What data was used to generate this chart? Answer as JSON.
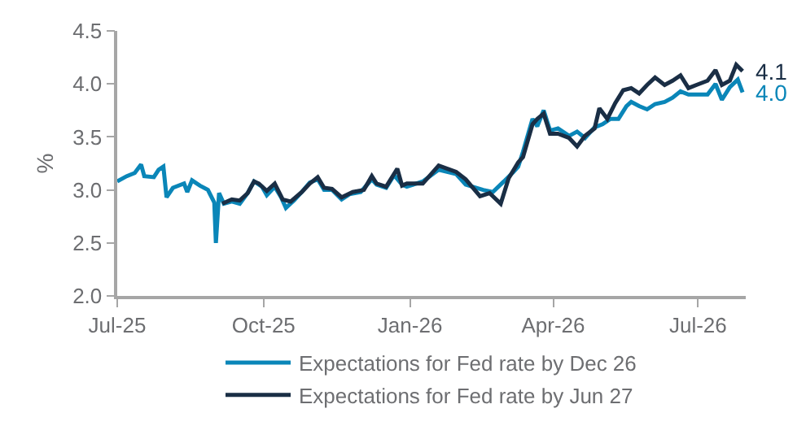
{
  "chart_data": {
    "type": "line",
    "ylabel": "%",
    "xlim": [
      "2025-07-01",
      "2026-07-31"
    ],
    "xticks": [
      {
        "value": "2025-07-01",
        "label": "Jul-25"
      },
      {
        "value": "2025-10-01",
        "label": "Oct-25"
      },
      {
        "value": "2026-01-01",
        "label": "Jan-26"
      },
      {
        "value": "2026-04-01",
        "label": "Apr-26"
      },
      {
        "value": "2026-07-01",
        "label": "Jul-26"
      }
    ],
    "ylim": [
      2,
      4.5
    ],
    "yticks": [
      {
        "value": 2,
        "label": "2.0"
      },
      {
        "value": 2.5,
        "label": "2.5"
      },
      {
        "value": 3,
        "label": "3.0"
      },
      {
        "value": 3.5,
        "label": "3.5"
      },
      {
        "value": 4,
        "label": "4.0"
      },
      {
        "value": 4.5,
        "label": "4.5"
      }
    ],
    "legend": "bottom",
    "line_style": "solid",
    "marker": "none",
    "series": [
      {
        "name": "Expectations for Fed rate by Dec 26",
        "color": "#0a86b8",
        "x": [
          "2025-07-01",
          "2025-07-07",
          "2025-07-12",
          "2025-07-16",
          "2025-07-18",
          "2025-07-24",
          "2025-07-27",
          "2025-07-30",
          "2025-08-01",
          "2025-08-05",
          "2025-08-12",
          "2025-08-14",
          "2025-08-17",
          "2025-08-22",
          "2025-08-27",
          "2025-08-31",
          "2025-09-01",
          "2025-09-03",
          "2025-09-06",
          "2025-09-11",
          "2025-09-16",
          "2025-09-21",
          "2025-09-25",
          "2025-09-30",
          "2025-10-03",
          "2025-10-08",
          "2025-10-12",
          "2025-10-15",
          "2025-10-20",
          "2025-10-25",
          "2025-10-30",
          "2025-11-04",
          "2025-11-08",
          "2025-11-13",
          "2025-11-19",
          "2025-11-24",
          "2025-12-01",
          "2025-12-08",
          "2025-12-11",
          "2025-12-17",
          "2025-12-22",
          "2025-12-27",
          "2025-12-30",
          "2026-01-09",
          "2026-01-19",
          "2026-01-30",
          "2026-02-05",
          "2026-02-16",
          "2026-02-22",
          "2026-03-01",
          "2026-03-07",
          "2026-03-10",
          "2026-03-13",
          "2026-03-19",
          "2026-03-22",
          "2026-03-26",
          "2026-03-30",
          "2026-04-04",
          "2026-04-11",
          "2026-04-16",
          "2026-04-21",
          "2026-04-27",
          "2026-05-02",
          "2026-05-07",
          "2026-05-12",
          "2026-05-17",
          "2026-05-20",
          "2026-05-25",
          "2026-05-30",
          "2026-06-04",
          "2026-06-10",
          "2026-06-15",
          "2026-06-20",
          "2026-06-25",
          "2026-06-30",
          "2026-07-07",
          "2026-07-12",
          "2026-07-16",
          "2026-07-21",
          "2026-07-26",
          "2026-07-29"
        ],
        "values": [
          3.08,
          3.13,
          3.16,
          3.24,
          3.13,
          3.12,
          3.19,
          3.22,
          2.93,
          3.02,
          3.06,
          2.98,
          3.09,
          3.04,
          3.0,
          2.88,
          2.5,
          2.97,
          2.87,
          2.89,
          2.87,
          2.97,
          3.08,
          3.03,
          2.95,
          3.03,
          2.93,
          2.83,
          2.9,
          2.98,
          3.07,
          3.1,
          3.0,
          3.0,
          2.91,
          2.96,
          2.98,
          3.1,
          3.05,
          3.02,
          3.14,
          3.05,
          3.03,
          3.08,
          3.19,
          3.15,
          3.05,
          3.0,
          2.98,
          3.08,
          3.17,
          3.22,
          3.36,
          3.67,
          3.6,
          3.75,
          3.56,
          3.58,
          3.51,
          3.55,
          3.49,
          3.59,
          3.62,
          3.67,
          3.67,
          3.79,
          3.83,
          3.79,
          3.76,
          3.81,
          3.83,
          3.87,
          3.93,
          3.9,
          3.9,
          3.9,
          4.0,
          3.85,
          3.97,
          4.04,
          3.92
        ]
      },
      {
        "name": "Expectations for Fed rate by Jun 27",
        "color": "#1a2e45",
        "x": [
          "2025-09-05",
          "2025-09-11",
          "2025-09-16",
          "2025-09-21",
          "2025-09-25",
          "2025-09-28",
          "2025-10-03",
          "2025-10-08",
          "2025-10-13",
          "2025-10-18",
          "2025-10-25",
          "2025-10-30",
          "2025-11-04",
          "2025-11-08",
          "2025-11-13",
          "2025-11-19",
          "2025-11-26",
          "2025-12-03",
          "2025-12-08",
          "2025-12-11",
          "2025-12-17",
          "2025-12-24",
          "2025-12-27",
          "2025-12-30",
          "2026-01-09",
          "2026-01-19",
          "2026-01-30",
          "2026-02-05",
          "2026-02-14",
          "2026-02-20",
          "2026-02-27",
          "2026-03-04",
          "2026-03-10",
          "2026-03-13",
          "2026-03-19",
          "2026-03-22",
          "2026-03-26",
          "2026-03-30",
          "2026-04-04",
          "2026-04-11",
          "2026-04-16",
          "2026-04-21",
          "2026-04-27",
          "2026-04-30",
          "2026-05-05",
          "2026-05-10",
          "2026-05-15",
          "2026-05-20",
          "2026-05-25",
          "2026-05-30",
          "2026-06-04",
          "2026-06-10",
          "2026-06-15",
          "2026-06-20",
          "2026-06-25",
          "2026-06-30",
          "2026-07-07",
          "2026-07-12",
          "2026-07-16",
          "2026-07-21",
          "2026-07-25",
          "2026-07-29"
        ],
        "values": [
          2.87,
          2.91,
          2.9,
          2.97,
          3.08,
          3.06,
          2.99,
          3.06,
          2.91,
          2.89,
          2.98,
          3.06,
          3.12,
          3.02,
          3.01,
          2.93,
          2.98,
          3.0,
          3.13,
          3.06,
          3.03,
          3.2,
          3.04,
          3.06,
          3.06,
          3.23,
          3.17,
          3.1,
          2.94,
          2.97,
          2.87,
          3.11,
          3.26,
          3.31,
          3.62,
          3.67,
          3.72,
          3.53,
          3.53,
          3.49,
          3.41,
          3.51,
          3.58,
          3.77,
          3.67,
          3.82,
          3.94,
          3.96,
          3.91,
          3.99,
          4.06,
          3.99,
          4.03,
          4.08,
          3.96,
          3.99,
          4.03,
          4.13,
          3.99,
          4.03,
          4.18,
          4.12
        ]
      }
    ],
    "annotations": [
      {
        "text": "4.0",
        "x": "2026-07-29",
        "y": 3.92
      },
      {
        "text": "4.1",
        "x": "2026-07-29",
        "y": 4.12
      }
    ]
  }
}
